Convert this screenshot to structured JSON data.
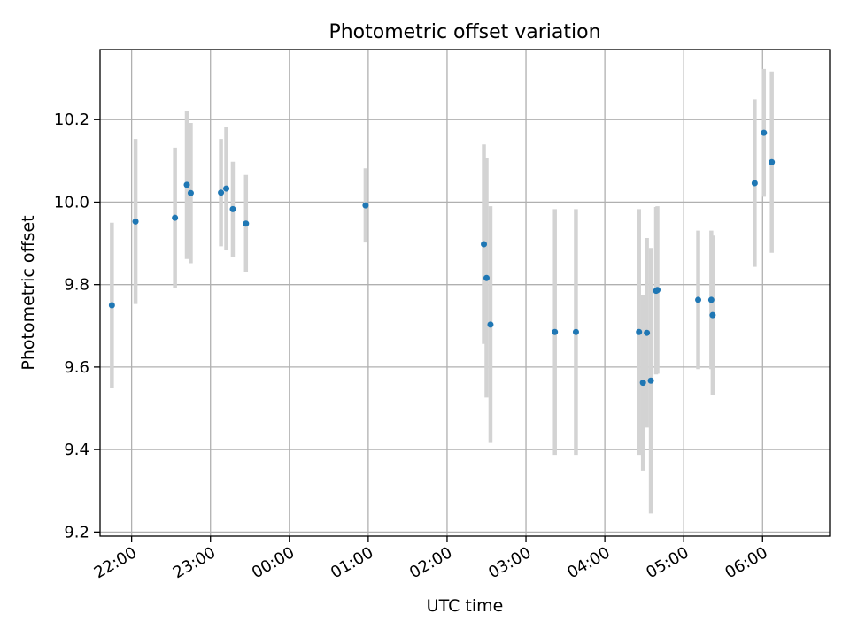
{
  "chart_data": {
    "type": "scatter",
    "title": "Photometric offset variation",
    "xlabel": "UTC time",
    "ylabel": "Photometric offset",
    "grid": true,
    "xlim": [
      "21:36",
      "06:51"
    ],
    "ylim": [
      9.19,
      10.37
    ],
    "xticks": [
      "22:00",
      "23:00",
      "00:00",
      "01:00",
      "02:00",
      "03:00",
      "04:00",
      "05:00",
      "06:00"
    ],
    "yticks": [
      9.2,
      9.4,
      9.6,
      9.8,
      10.0,
      10.2
    ],
    "ytick_labels": [
      "9.2",
      "9.4",
      "9.6",
      "9.8",
      "10.0",
      "10.2"
    ],
    "series": [
      {
        "marker_color": "#1f77b4",
        "errorbar_color": "#d3d3d3",
        "points": [
          {
            "x": "21:45",
            "y": 9.75,
            "err": 0.2
          },
          {
            "x": "22:03",
            "y": 9.953,
            "err": 0.2
          },
          {
            "x": "22:33",
            "y": 9.962,
            "err": 0.17
          },
          {
            "x": "22:42",
            "y": 10.042,
            "err": 0.18
          },
          {
            "x": "22:45",
            "y": 10.022,
            "err": 0.17
          },
          {
            "x": "23:08",
            "y": 10.023,
            "err": 0.13
          },
          {
            "x": "23:12",
            "y": 10.033,
            "err": 0.15
          },
          {
            "x": "23:17",
            "y": 9.983,
            "err": 0.115
          },
          {
            "x": "23:27",
            "y": 9.948,
            "err": 0.118
          },
          {
            "x": "00:58",
            "y": 9.992,
            "err": 0.09
          },
          {
            "x": "02:28",
            "y": 9.898,
            "err": 0.242
          },
          {
            "x": "02:30",
            "y": 9.816,
            "err": 0.29
          },
          {
            "x": "02:33",
            "y": 9.703,
            "err": 0.287
          },
          {
            "x": "03:22",
            "y": 9.685,
            "err": 0.298
          },
          {
            "x": "03:38",
            "y": 9.685,
            "err": 0.298
          },
          {
            "x": "04:26",
            "y": 9.685,
            "err": 0.298
          },
          {
            "x": "04:29",
            "y": 9.562,
            "err": 0.213
          },
          {
            "x": "04:32",
            "y": 9.683,
            "err": 0.23
          },
          {
            "x": "04:35",
            "y": 9.567,
            "err": 0.322
          },
          {
            "x": "04:39",
            "y": 9.785,
            "err": 0.203
          },
          {
            "x": "04:40",
            "y": 9.787,
            "err": 0.203
          },
          {
            "x": "05:11",
            "y": 9.763,
            "err": 0.168
          },
          {
            "x": "05:21",
            "y": 9.763,
            "err": 0.168
          },
          {
            "x": "05:22",
            "y": 9.726,
            "err": 0.193
          },
          {
            "x": "05:54",
            "y": 10.046,
            "err": 0.203
          },
          {
            "x": "06:01",
            "y": 10.168,
            "err": 0.155
          },
          {
            "x": "06:07",
            "y": 10.097,
            "err": 0.22
          }
        ]
      }
    ],
    "legend": "none"
  }
}
